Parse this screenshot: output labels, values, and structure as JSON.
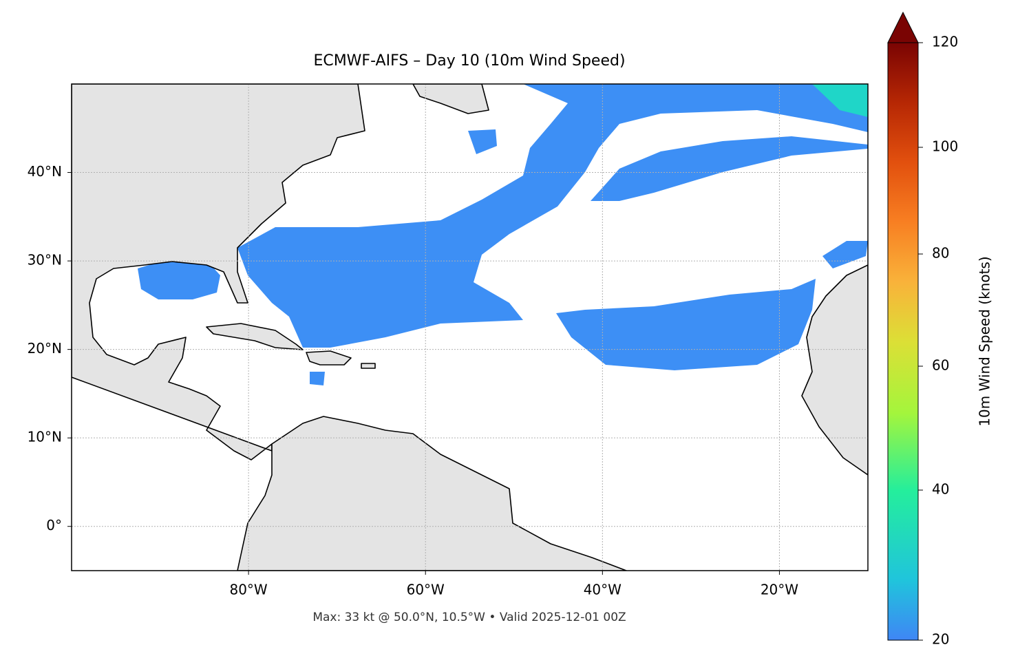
{
  "chart_data": {
    "type": "map",
    "title": "ECMWF-AIFS – Day 10 (10m Wind Speed)",
    "footnote": "Max: 33 kt @ 50.0°N, 10.5°W • Valid 2025-12-01 00Z",
    "xlim": [
      -100,
      -10
    ],
    "ylim": [
      -5,
      50
    ],
    "xticks": [
      {
        "value": -80,
        "label": "80°W"
      },
      {
        "value": -60,
        "label": "60°W"
      },
      {
        "value": -40,
        "label": "40°W"
      },
      {
        "value": -20,
        "label": "20°W"
      }
    ],
    "yticks": [
      {
        "value": 0,
        "label": "0°"
      },
      {
        "value": 10,
        "label": "10°N"
      },
      {
        "value": 20,
        "label": "20°N"
      },
      {
        "value": 30,
        "label": "30°N"
      },
      {
        "value": 40,
        "label": "40°N"
      }
    ],
    "grid": true,
    "colorbar": {
      "label": "10m Wind Speed (knots)",
      "lim": [
        20,
        120
      ],
      "ticks": [
        20,
        40,
        60,
        80,
        100,
        120
      ]
    }
  }
}
